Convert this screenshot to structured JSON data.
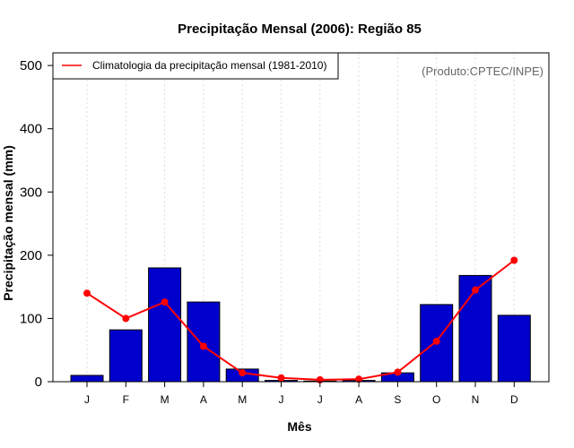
{
  "chart_data": {
    "type": "bar",
    "title": "Precipitação Mensal (2006): Região 85",
    "xlabel": "Mês",
    "ylabel": "Precipitação mensal (mm)",
    "ylim": [
      0,
      520
    ],
    "yticks": [
      0,
      100,
      200,
      300,
      400,
      500
    ],
    "categories": [
      "J",
      "F",
      "M",
      "A",
      "M",
      "J",
      "J",
      "A",
      "S",
      "O",
      "N",
      "D"
    ],
    "series": [
      {
        "name": "Precipitação mensal 2006",
        "kind": "bar",
        "color": "#0000cc",
        "values": [
          10,
          82,
          180,
          126,
          20,
          2,
          1,
          2,
          14,
          122,
          168,
          105
        ]
      },
      {
        "name": "Climatologia da precipitação mensal (1981-2010)",
        "kind": "line",
        "color": "#ff0000",
        "values": [
          140,
          100,
          126,
          56,
          14,
          6,
          3,
          4,
          15,
          64,
          145,
          192
        ]
      }
    ],
    "legend": {
      "entry": "Climatologia da precipitação mensal (1981-2010)",
      "placement": "top-left"
    },
    "source_note": "(Produto:CPTEC/INPE)",
    "grid": "vertical-dotted"
  }
}
